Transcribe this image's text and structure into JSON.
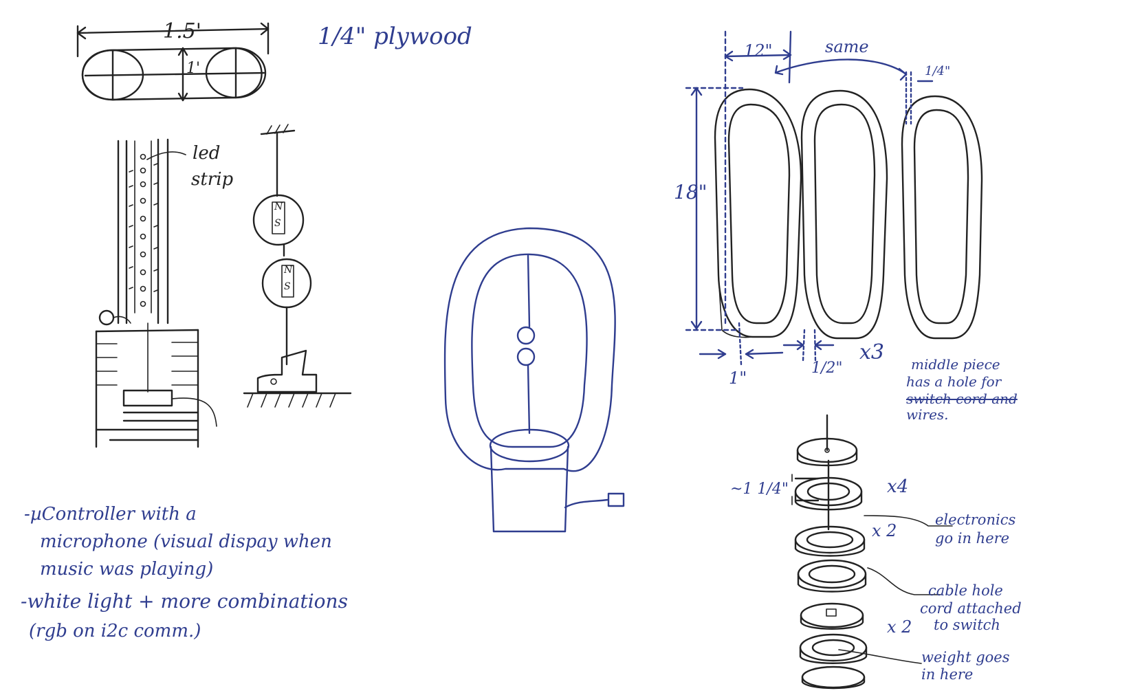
{
  "colors": {
    "ink": "#222222",
    "blue_ink": "#2f3d8f",
    "paper": "#ffffff"
  },
  "top_left": {
    "width_label": "1.5'",
    "height_label": "1'",
    "material_label": "1/4\" plywood",
    "led_label_line1": "led",
    "led_label_line2": "strip",
    "magnet_top": {
      "n": "N",
      "s": "S"
    },
    "magnet_bottom": {
      "n": "N",
      "s": "S"
    }
  },
  "notes": {
    "line1": "-µController with a",
    "line2": "microphone (visual dispay when",
    "line3": "music was playing)",
    "line4": "-white light + more combinations",
    "line5": "(rgb on i2c comm.)"
  },
  "right": {
    "width_label": "12\"",
    "same_label": "same",
    "thickness_label": "1/4\"",
    "height_label": "18\"",
    "gap_label": "1\"",
    "half_label": "1/2\"",
    "count_label": "x3",
    "middle_note_line1": "middle piece",
    "middle_note_line2": "has a hole for",
    "middle_note_line3": "switch cord and",
    "middle_note_line4": "wires."
  },
  "stack": {
    "height_label": "~1 1/4\"",
    "x4": "x4",
    "x2_top": "x 2",
    "x2_bottom": "x 2",
    "electronics_line1": "electronics",
    "electronics_line2": "go in here",
    "cable_line1": "cable hole",
    "cable_line2": "cord attached",
    "cable_line3": "to switch",
    "weight_line1": "weight goes",
    "weight_line2": "in here"
  }
}
